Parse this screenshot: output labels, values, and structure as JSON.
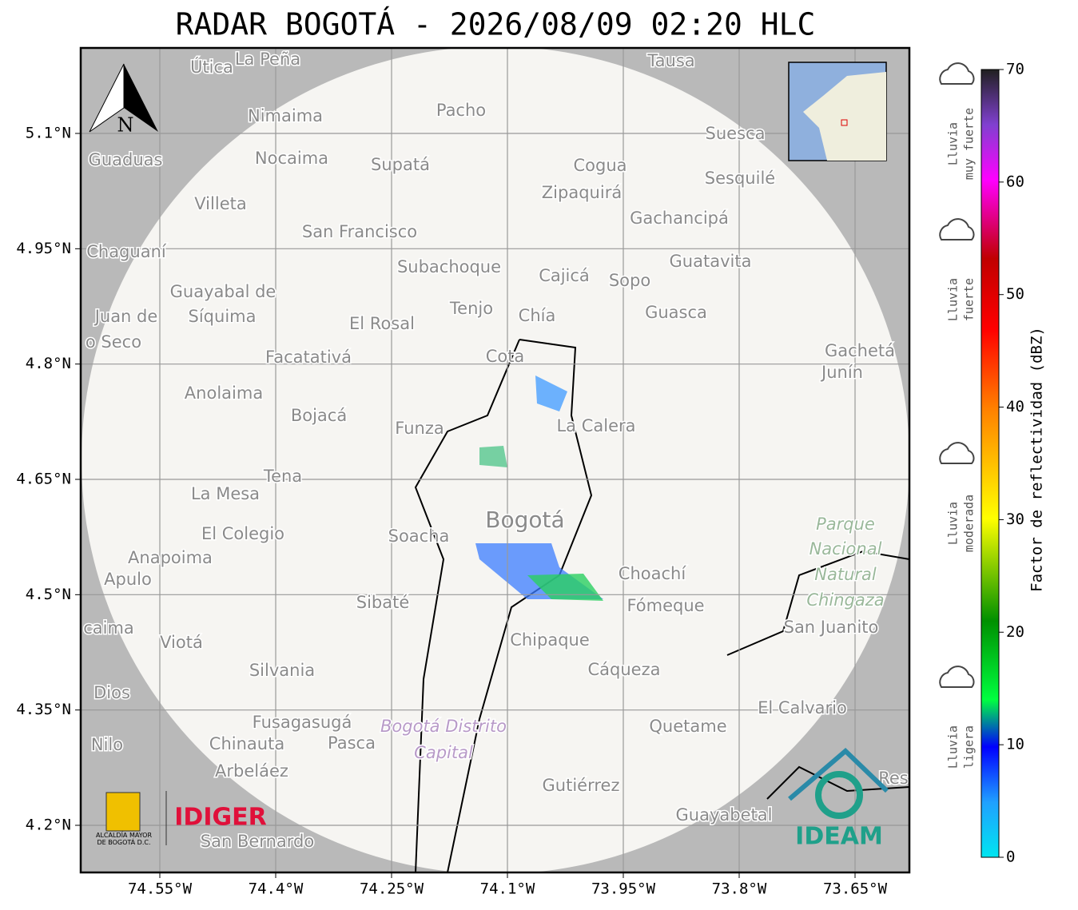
{
  "map": {
    "title": "RADAR BOGOTÁ - 2026/08/09 02:20 HLC",
    "compass": "N",
    "lat_ticks": [
      {
        "value": 5.1,
        "label": "5.1°N"
      },
      {
        "value": 4.95,
        "label": "4.95°N"
      },
      {
        "value": 4.8,
        "label": "4.8°N"
      },
      {
        "value": 4.65,
        "label": "4.65°N"
      },
      {
        "value": 4.5,
        "label": "4.5°N"
      },
      {
        "value": 4.35,
        "label": "4.35°N"
      },
      {
        "value": 4.2,
        "label": "4.2°N"
      }
    ],
    "lon_ticks": [
      {
        "value": -74.55,
        "label": "74.55°W"
      },
      {
        "value": -74.4,
        "label": "74.4°W"
      },
      {
        "value": -74.25,
        "label": "74.25°W"
      },
      {
        "value": -74.1,
        "label": "74.1°W"
      },
      {
        "value": -73.95,
        "label": "73.95°W"
      },
      {
        "value": -73.8,
        "label": "73.8°W"
      },
      {
        "value": -73.65,
        "label": "73.65°W"
      }
    ],
    "colorbar": {
      "label": "Factor de reflectividad (dBZ)",
      "ticks": [
        0,
        10,
        20,
        30,
        40,
        50,
        60,
        70
      ]
    },
    "rain_levels": [
      [
        "Lluvia",
        "muy fuerte"
      ],
      [
        "Lluvia",
        "fuerte"
      ],
      [
        "Lluvia",
        "moderada"
      ],
      [
        "Lluvia",
        "ligera"
      ]
    ],
    "logos": {
      "alcaldia": "ALCALDÍA MAYOR",
      "alcaldia_2": "DE BOGOTÁ D.C.",
      "idiger": "IDIGER",
      "ideam": "IDEAM"
    },
    "places": [
      "Útica",
      "La Peña",
      "Tausa",
      "Pacho",
      "Nimaima",
      "Guaduas",
      "Nocaima",
      "Supatá",
      "Cogua",
      "Suesca",
      "Sesquilé",
      "Zipaquirá",
      "Villeta",
      "Gachancipá",
      "San Francisco",
      "Chaguaní",
      "Guatavita",
      "Subachoque",
      "Cajicá",
      "Sopo",
      "Guayabal de",
      "Síquima",
      "Juan de",
      "o Seco",
      "Tenjo",
      "Chía",
      "Guasca",
      "El Rosal",
      "Facatativá",
      "Cota",
      "Gachetá",
      "Junín",
      "Anolaima",
      "Bojacá",
      "Funza",
      "La Calera",
      "Tena",
      "La Mesa",
      "Bogotá",
      "Parque",
      "Nacional",
      "Natural",
      "Chingaza",
      "El Colegio",
      "Soacha",
      "Anapoima",
      "Apulo",
      "Choachí",
      "Sibaté",
      "Fómeque",
      "San Juanito",
      "caima",
      "Viotá",
      "Chipaque",
      "Silvania",
      "Cáqueza",
      "Dios",
      "El Calvario",
      "Fusagasugá",
      "Quetame",
      "Bogotá Distrito",
      "Capital",
      "Nilo",
      "Chinauta",
      "Pasca",
      "Arbeláez",
      "Gutiérrez",
      "Res",
      "Guayabetal",
      "San Bernardo"
    ]
  }
}
